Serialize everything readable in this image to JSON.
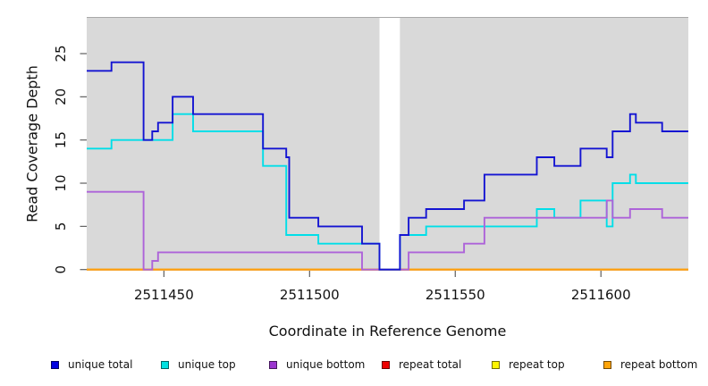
{
  "chart_data": {
    "type": "line",
    "step": "post",
    "title": "",
    "xlabel": "Coordinate in Reference Genome",
    "ylabel": "Read Coverage Depth",
    "x_domain": [
      2511423.5,
      2511630
    ],
    "y_domain": [
      0,
      29.3
    ],
    "grid": false,
    "plot_bg": "#d9d9d9",
    "gap_region": {
      "from": 2511524,
      "to": 2511531,
      "color": "#ffffff"
    },
    "xticks": [
      {
        "value": 2511450,
        "label": "2511450"
      },
      {
        "value": 2511500,
        "label": "2511500"
      },
      {
        "value": 2511550,
        "label": "2511550"
      },
      {
        "value": 2511600,
        "label": "2511600"
      }
    ],
    "yticks": [
      {
        "value": 0,
        "label": "0"
      },
      {
        "value": 5,
        "label": "5"
      },
      {
        "value": 10,
        "label": "10"
      },
      {
        "value": 15,
        "label": "15"
      },
      {
        "value": 20,
        "label": "20"
      },
      {
        "value": 25,
        "label": "25"
      }
    ],
    "x_end": 2511630,
    "series": [
      {
        "name": "unique total",
        "color": "#1414d2",
        "points": [
          [
            2511423.5,
            23
          ],
          [
            2511432,
            24
          ],
          [
            2511443,
            15
          ],
          [
            2511446,
            16
          ],
          [
            2511448,
            17
          ],
          [
            2511453,
            20
          ],
          [
            2511460,
            18
          ],
          [
            2511484,
            14
          ],
          [
            2511492,
            13
          ],
          [
            2511493,
            6
          ],
          [
            2511503,
            5
          ],
          [
            2511518,
            3
          ],
          [
            2511524,
            0
          ],
          [
            2511531,
            4
          ],
          [
            2511534,
            6
          ],
          [
            2511540,
            7
          ],
          [
            2511553,
            8
          ],
          [
            2511560,
            11
          ],
          [
            2511578,
            13
          ],
          [
            2511584,
            12
          ],
          [
            2511593,
            14
          ],
          [
            2511602,
            13
          ],
          [
            2511604,
            16
          ],
          [
            2511610,
            18
          ],
          [
            2511612,
            17
          ],
          [
            2511621,
            16
          ]
        ]
      },
      {
        "name": "unique top",
        "color": "#00dee8",
        "points": [
          [
            2511423.5,
            14
          ],
          [
            2511432,
            15
          ],
          [
            2511453,
            18
          ],
          [
            2511460,
            16
          ],
          [
            2511484,
            12
          ],
          [
            2511492,
            4
          ],
          [
            2511503,
            3
          ],
          [
            2511524,
            0
          ],
          [
            2511531,
            4
          ],
          [
            2511540,
            5
          ],
          [
            2511578,
            7
          ],
          [
            2511584,
            6
          ],
          [
            2511593,
            8
          ],
          [
            2511602,
            5
          ],
          [
            2511604,
            10
          ],
          [
            2511610,
            11
          ],
          [
            2511612,
            10
          ]
        ]
      },
      {
        "name": "unique bottom",
        "color": "#ad63d9",
        "points": [
          [
            2511423.5,
            9
          ],
          [
            2511443,
            0
          ],
          [
            2511446,
            1
          ],
          [
            2511448,
            2
          ],
          [
            2511518,
            0
          ],
          [
            2511534,
            2
          ],
          [
            2511553,
            3
          ],
          [
            2511560,
            6
          ],
          [
            2511602,
            8
          ],
          [
            2511604,
            6
          ],
          [
            2511610,
            7
          ],
          [
            2511621,
            6
          ]
        ]
      },
      {
        "name": "repeat total",
        "color": "#ee1111",
        "points": [
          [
            2511423.5,
            0
          ]
        ]
      },
      {
        "name": "repeat top",
        "color": "#fff200",
        "points": [
          [
            2511423.5,
            0
          ]
        ]
      },
      {
        "name": "repeat bottom",
        "color": "#ff9f0e",
        "points": [
          [
            2511423.5,
            0
          ]
        ]
      }
    ],
    "draw_order": [
      3,
      4,
      5,
      1,
      2,
      0
    ]
  },
  "legend": {
    "items": [
      {
        "label": "unique total",
        "color": "#0000e0"
      },
      {
        "label": "unique top",
        "color": "#00e0e0"
      },
      {
        "label": "unique bottom",
        "color": "#9b35cf"
      },
      {
        "label": "repeat total",
        "color": "#ee0000"
      },
      {
        "label": "repeat top",
        "color": "#fdf400"
      },
      {
        "label": "repeat bottom",
        "color": "#ffa408"
      }
    ]
  }
}
